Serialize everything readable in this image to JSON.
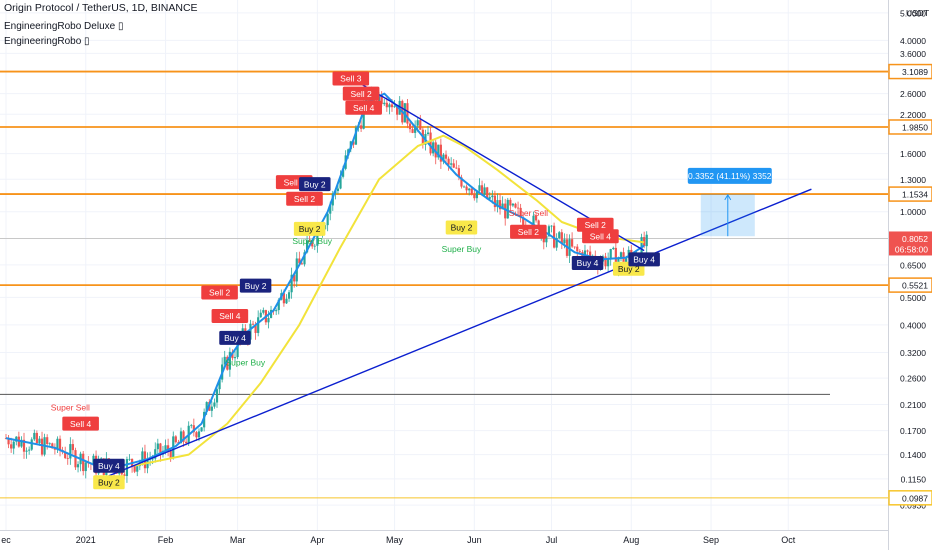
{
  "header": {
    "title": "Origin Protocol / TetherUS, 1D, BINANCE",
    "indicators": [
      "EngineeringRobo Deluxe ▯",
      "EngineeringRobo ▯"
    ]
  },
  "chart_data": {
    "type": "line",
    "y_scale": "log",
    "ylim": [
      0.088,
      5.2
    ],
    "currency_label": "USDT",
    "y_ticks": [
      5.0,
      4.0,
      3.6,
      2.6,
      2.2,
      1.6,
      1.3,
      1.0,
      0.65,
      0.5,
      0.4,
      0.32,
      0.26,
      0.21,
      0.17,
      0.14,
      0.115,
      0.093
    ],
    "y_tick_labels": [
      "5.0000",
      "4.0000",
      "3.6000",
      "2.6000",
      "2.2000",
      "1.6000",
      "1.3000",
      "1.0000",
      "0.6500",
      "0.5000",
      "0.4000",
      "0.3200",
      "0.2600",
      "0.2100",
      "0.1700",
      "0.1400",
      "0.1150",
      "0.0930"
    ],
    "x_range": [
      "2020-12-01",
      "2021-10-18"
    ],
    "x_ticks": [
      {
        "date": "2020-12-01",
        "label": "ec"
      },
      {
        "date": "2021-01-01",
        "label": "2021"
      },
      {
        "date": "2021-02-01",
        "label": "Feb"
      },
      {
        "date": "2021-03-01",
        "label": "Mar"
      },
      {
        "date": "2021-04-01",
        "label": "Apr"
      },
      {
        "date": "2021-05-01",
        "label": "May"
      },
      {
        "date": "2021-06-01",
        "label": "Jun"
      },
      {
        "date": "2021-07-01",
        "label": "Jul"
      },
      {
        "date": "2021-08-01",
        "label": "Aug"
      },
      {
        "date": "2021-09-01",
        "label": "Sep"
      },
      {
        "date": "2021-10-01",
        "label": "Oct"
      }
    ],
    "horizontal_levels": [
      {
        "value": 3.1089,
        "label": "3.1089",
        "color": "#f7931a"
      },
      {
        "value": 1.985,
        "label": "1.9850",
        "color": "#f7931a"
      },
      {
        "value": 1.1534,
        "label": "1.1534",
        "color": "#f7931a"
      },
      {
        "value": 0.5521,
        "label": "0.5521",
        "color": "#f7931a"
      },
      {
        "value": 0.0987,
        "label": "0.0987",
        "color": "#f7c52a"
      },
      {
        "value": 0.228,
        "label": "",
        "color": "#555555"
      }
    ],
    "current_price": {
      "value": 0.8052,
      "label": "0.8052",
      "countdown": "06:58:00",
      "color": "#ef5350"
    },
    "series": [
      {
        "name": "",
        "color": "#1e90e8",
        "points": [
          [
            "2020-12-01",
            0.16
          ],
          [
            "2020-12-20",
            0.148
          ],
          [
            "2021-01-05",
            0.128
          ],
          [
            "2021-01-15",
            0.128
          ],
          [
            "2021-01-25",
            0.135
          ],
          [
            "2021-02-05",
            0.15
          ],
          [
            "2021-02-15",
            0.18
          ],
          [
            "2021-02-25",
            0.3
          ],
          [
            "2021-03-05",
            0.38
          ],
          [
            "2021-03-15",
            0.45
          ],
          [
            "2021-03-25",
            0.65
          ],
          [
            "2021-04-05",
            1.0
          ],
          [
            "2021-04-12",
            1.5
          ],
          [
            "2021-04-20",
            2.4
          ],
          [
            "2021-04-27",
            2.6
          ],
          [
            "2021-05-05",
            2.2
          ],
          [
            "2021-05-15",
            1.7
          ],
          [
            "2021-05-25",
            1.35
          ],
          [
            "2021-06-01",
            1.2
          ],
          [
            "2021-06-10",
            1.05
          ],
          [
            "2021-06-20",
            0.95
          ],
          [
            "2021-07-01",
            0.82
          ],
          [
            "2021-07-10",
            0.72
          ],
          [
            "2021-07-20",
            0.68
          ],
          [
            "2021-07-30",
            0.69
          ],
          [
            "2021-08-06",
            0.76
          ]
        ]
      },
      {
        "name": "",
        "color": "#f2e33b",
        "points": [
          [
            "2021-01-20",
            0.128
          ],
          [
            "2021-02-10",
            0.14
          ],
          [
            "2021-02-25",
            0.18
          ],
          [
            "2021-03-10",
            0.25
          ],
          [
            "2021-03-25",
            0.4
          ],
          [
            "2021-04-10",
            0.75
          ],
          [
            "2021-04-25",
            1.3
          ],
          [
            "2021-05-10",
            1.7
          ],
          [
            "2021-05-20",
            1.85
          ],
          [
            "2021-05-28",
            1.7
          ],
          [
            "2021-06-10",
            1.4
          ],
          [
            "2021-06-25",
            1.1
          ],
          [
            "2021-07-05",
            0.92
          ],
          [
            "2021-07-20",
            0.82
          ],
          [
            "2021-08-06",
            0.78
          ]
        ]
      }
    ],
    "trendlines": [
      {
        "from": [
          "2021-01-10",
          0.118
        ],
        "to": [
          "2021-10-10",
          1.2
        ],
        "color": "#0b1fcf"
      },
      {
        "from": [
          "2021-04-10",
          3.1
        ],
        "to": [
          "2021-08-06",
          0.73
        ],
        "color": "#0b1fcf"
      }
    ],
    "projection": {
      "from": [
        "2021-08-28",
        0.82
      ],
      "to": [
        "2021-09-18",
        1.155
      ],
      "label": "0.3352 (41.11%) 3352"
    },
    "signals": [
      {
        "date": "2020-12-30",
        "price": 0.18,
        "text": "Sell 4",
        "kind": "sell"
      },
      {
        "date": "2020-12-26",
        "price": 0.205,
        "text": "Super Sell",
        "kind": "super-sell"
      },
      {
        "date": "2021-01-10",
        "price": 0.128,
        "text": "Buy 4",
        "kind": "buy4"
      },
      {
        "date": "2021-01-10",
        "price": 0.112,
        "text": "Buy 2",
        "kind": "buy2"
      },
      {
        "date": "2021-02-22",
        "price": 0.52,
        "text": "Sell 2",
        "kind": "sell"
      },
      {
        "date": "2021-02-26",
        "price": 0.43,
        "text": "Sell 4",
        "kind": "sell"
      },
      {
        "date": "2021-02-28",
        "price": 0.36,
        "text": "Buy 4",
        "kind": "buy4"
      },
      {
        "date": "2021-03-04",
        "price": 0.295,
        "text": "Super Buy",
        "kind": "super-buy"
      },
      {
        "date": "2021-03-08",
        "price": 0.55,
        "text": "Buy 2",
        "kind": "buy4"
      },
      {
        "date": "2021-03-23",
        "price": 1.27,
        "text": "Sell 3",
        "kind": "sell"
      },
      {
        "date": "2021-03-27",
        "price": 1.11,
        "text": "Sell 2",
        "kind": "sell"
      },
      {
        "date": "2021-03-31",
        "price": 1.25,
        "text": "Buy 2",
        "kind": "buy4"
      },
      {
        "date": "2021-03-29",
        "price": 0.87,
        "text": "Buy 2",
        "kind": "buy2"
      },
      {
        "date": "2021-03-30",
        "price": 0.79,
        "text": "Super Buy",
        "kind": "super-buy"
      },
      {
        "date": "2021-04-14",
        "price": 2.94,
        "text": "Sell 3",
        "kind": "sell"
      },
      {
        "date": "2021-04-18",
        "price": 2.6,
        "text": "Sell 2",
        "kind": "sell"
      },
      {
        "date": "2021-04-19",
        "price": 2.32,
        "text": "Sell 4",
        "kind": "sell"
      },
      {
        "date": "2021-05-27",
        "price": 0.88,
        "text": "Buy 2",
        "kind": "buy2"
      },
      {
        "date": "2021-05-27",
        "price": 0.74,
        "text": "Super Buy",
        "kind": "super-buy"
      },
      {
        "date": "2021-06-22",
        "price": 0.99,
        "text": "Super Sell",
        "kind": "super-sell"
      },
      {
        "date": "2021-06-22",
        "price": 0.85,
        "text": "Sell 2",
        "kind": "sell"
      },
      {
        "date": "2021-07-18",
        "price": 0.9,
        "text": "Sell 2",
        "kind": "sell"
      },
      {
        "date": "2021-07-20",
        "price": 0.82,
        "text": "Sell 4",
        "kind": "sell"
      },
      {
        "date": "2021-07-15",
        "price": 0.66,
        "text": "Buy 4",
        "kind": "buy4"
      },
      {
        "date": "2021-07-31",
        "price": 0.63,
        "text": "Buy 2",
        "kind": "buy2"
      },
      {
        "date": "2021-08-06",
        "price": 0.68,
        "text": "Buy 4",
        "kind": "buy4"
      }
    ],
    "colors": {
      "bull": "#26a69a",
      "bear": "#ef5350",
      "level": "#f7931a",
      "trend": "#0b1fcf"
    }
  }
}
